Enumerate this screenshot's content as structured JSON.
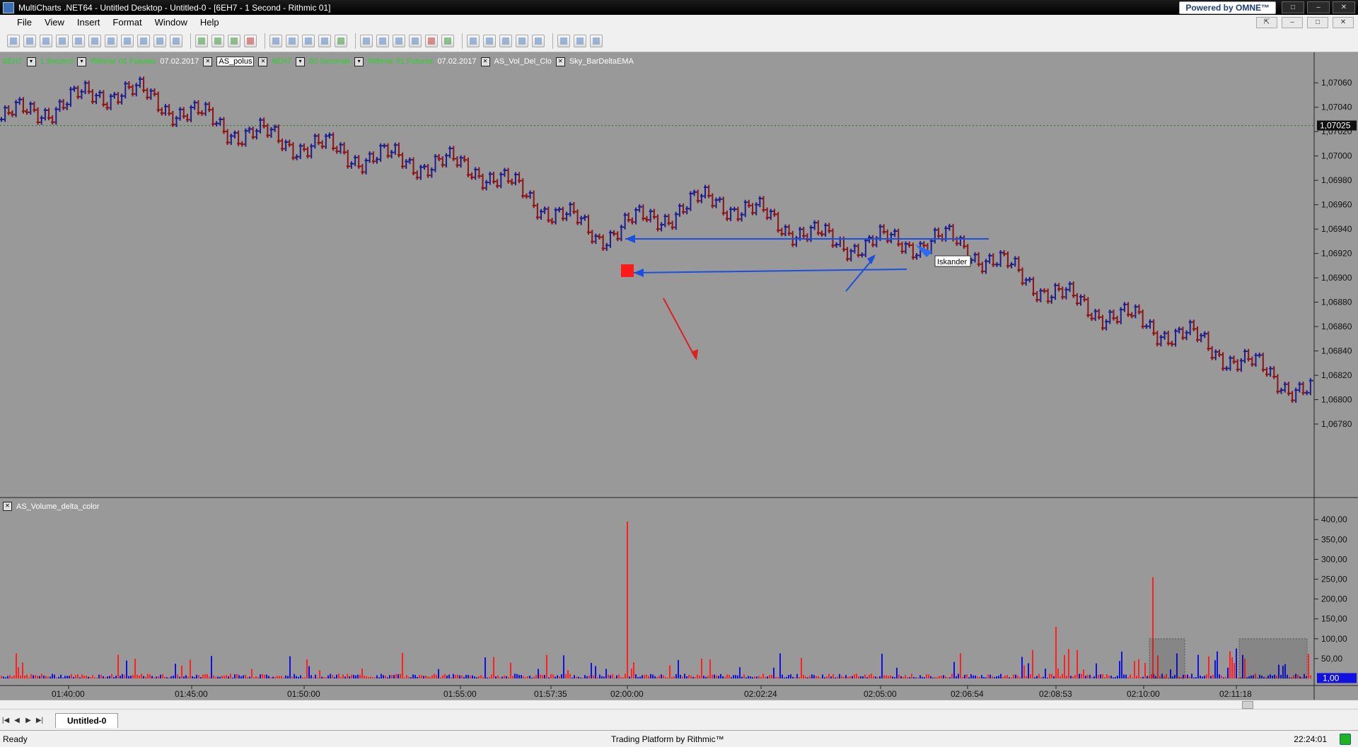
{
  "window": {
    "title": "MultiCharts .NET64 - Untitled Desktop - Untitled-0 - [6EH7 - 1 Second - Rithmic 01]",
    "brand_badge": "Powered by OMNE™",
    "controls": [
      "□",
      "–",
      "✕"
    ]
  },
  "menu": {
    "items": [
      "File",
      "View",
      "Insert",
      "Format",
      "Window",
      "Help"
    ]
  },
  "mdi_controls": [
    "⇱",
    "–",
    "□",
    "✕"
  ],
  "chart": {
    "status_line": {
      "symbol": "6EH7",
      "interval": "1 Second",
      "feed": "Rithmic 01 Futures",
      "date": "07.02.2017",
      "indicator_selected": "AS_polus",
      "symbol2": "6EH7",
      "interval2": "60 Seconds",
      "feed2": "Rithmic 01 Futures",
      "date2": "07.02.2017",
      "indicator2": "AS_Vol_Del_Clo",
      "indicator3": "Sky_BarDeltaEMA"
    },
    "price_axis_ticks": [
      "1,07060",
      "1,07040",
      "1,07020",
      "1,07000",
      "1,06980",
      "1,06960",
      "1,06940",
      "1,06920",
      "1,06900",
      "1,06880",
      "1,06860",
      "1,06840",
      "1,06820",
      "1,06800",
      "1,06780"
    ],
    "current_price": "1,07025",
    "subchart_title": "AS_Volume_delta_color",
    "volume_axis_ticks": [
      "400,00",
      "350,00",
      "300,00",
      "250,00",
      "200,00",
      "150,00",
      "100,00",
      "50,00"
    ],
    "volume_current": "1,00",
    "time_axis_labels": [
      "01:40:00",
      "01:45:00",
      "01:50:00",
      "01:55:00",
      "01:57:35",
      "02:00:00",
      "02:02:24",
      "02:05:00",
      "02:06:54",
      "02:08:53",
      "02:10:00",
      "02:11:18"
    ],
    "annotation_label": "Iskander",
    "colors": {
      "background": "#999999",
      "up_bar": "#1e1e8c",
      "down_bar": "#8c1414",
      "trendline": "#1a4fe0",
      "arrow_red": "#e02020",
      "vol_up": "#1010e0",
      "vol_down": "#ff2020"
    }
  },
  "chart_data": {
    "type": "line",
    "title": "6EH7 - 1 Second",
    "xlabel": "",
    "ylabel": "",
    "x": [
      "01:40:00",
      "01:45:00",
      "01:50:00",
      "01:55:00",
      "01:57:35",
      "02:00:00",
      "02:02:24",
      "02:05:00",
      "02:06:54",
      "02:08:53",
      "02:10:00",
      "02:11:18"
    ],
    "series": [
      {
        "values": [
          1.0703,
          1.07055,
          1.0702,
          1.07,
          1.0699,
          1.06935,
          1.06965,
          1.06928,
          1.0693,
          1.0688,
          1.0685,
          1.06805
        ]
      }
    ],
    "ylim": [
      1.0678,
      1.0707
    ],
    "volume_ylim": [
      0,
      400
    ],
    "volume_spikes": [
      {
        "time": "02:00:00",
        "value": 395
      },
      {
        "time": "02:10:00",
        "value": 255
      },
      {
        "time": "02:08:53",
        "value": 130
      }
    ]
  },
  "tabs": {
    "items": [
      "Untitled-0"
    ],
    "nav": [
      "|◀",
      "◀",
      "▶",
      "▶|"
    ]
  },
  "status": {
    "ready": "Ready",
    "center": "Trading Platform by Rithmic™",
    "time": "22:24:01"
  }
}
